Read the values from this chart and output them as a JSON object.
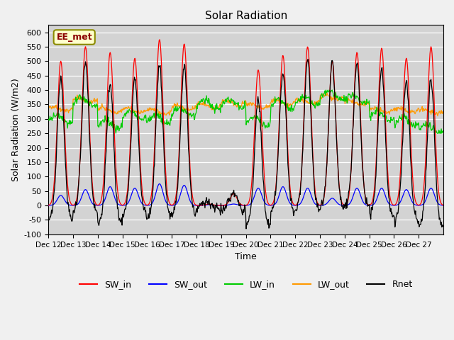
{
  "title": "Solar Radiation",
  "ylabel": "Solar Radiation (W/m2)",
  "xlabel": "Time",
  "ylim": [
    -100,
    625
  ],
  "yticks": [
    -100,
    -50,
    0,
    50,
    100,
    150,
    200,
    250,
    300,
    350,
    400,
    450,
    500,
    550,
    600
  ],
  "annotation_text": "EE_met",
  "line_colors": {
    "SW_in": "#ff0000",
    "SW_out": "#0000ff",
    "LW_in": "#00cc00",
    "LW_out": "#ff9900",
    "Rnet": "#000000"
  },
  "xtick_labels": [
    "Dec 12",
    "Dec 13",
    "Dec 14",
    "Dec 15",
    "Dec 16",
    "Dec 17",
    "Dec 18",
    "Dec 19",
    "Dec 20",
    "Dec 21",
    "Dec 22",
    "Dec 23",
    "Dec 24",
    "Dec 25",
    "Dec 26",
    "Dec 27"
  ],
  "num_days": 16,
  "points_per_day": 48
}
